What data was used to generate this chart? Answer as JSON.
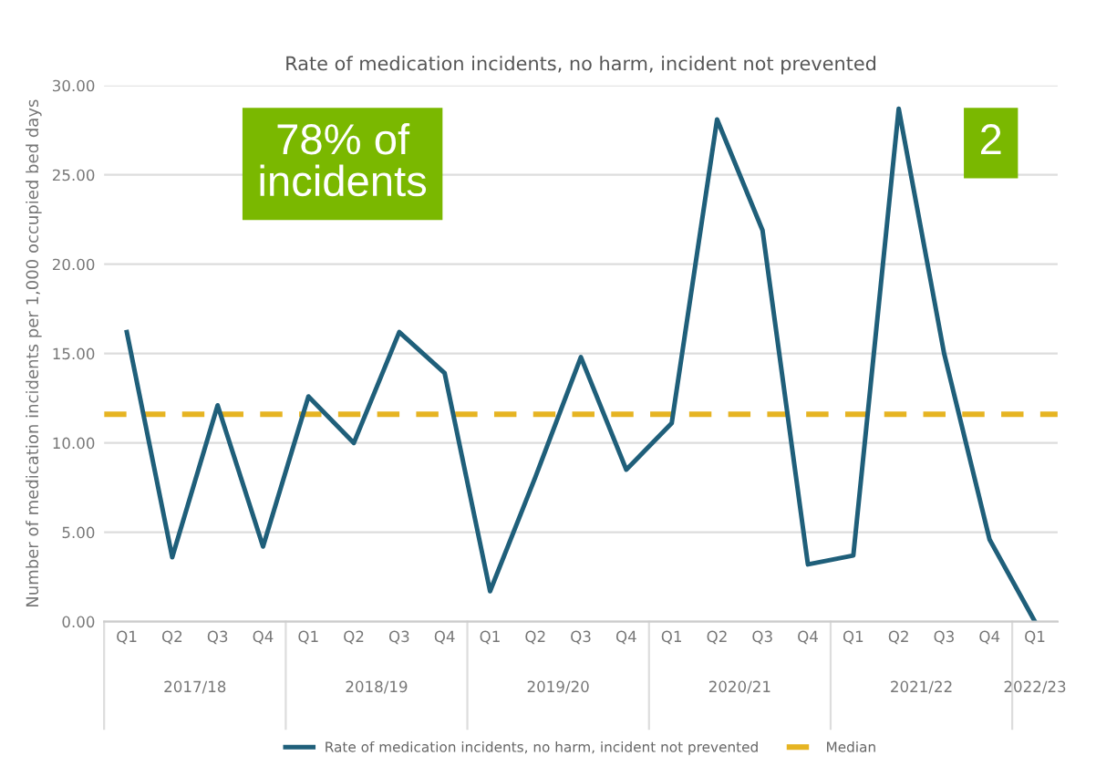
{
  "chart_data": {
    "type": "line",
    "title": "Rate of medication incidents, no harm, incident not prevented",
    "ylabel": "Number of medication incidents per 1,000 occupied bed days",
    "categories": [
      "Q1",
      "Q2",
      "Q3",
      "Q4",
      "Q1",
      "Q2",
      "Q3",
      "Q4",
      "Q1",
      "Q2",
      "Q3",
      "Q4",
      "Q1",
      "Q2",
      "Q3",
      "Q4",
      "Q1",
      "Q2",
      "Q3",
      "Q4",
      "Q1"
    ],
    "series": [
      {
        "name": "Rate of medication incidents, no harm, incident not prevented",
        "color": "#1f5f7a",
        "values": [
          16.2,
          3.6,
          12.1,
          4.2,
          12.6,
          10.0,
          16.2,
          13.9,
          1.7,
          8.1,
          14.8,
          8.5,
          11.1,
          28.1,
          21.9,
          3.2,
          3.7,
          28.7,
          15.0,
          4.6,
          0.0
        ]
      }
    ],
    "ref_lines": [
      {
        "axis": "y",
        "value": 11.6,
        "label": "Median",
        "color": "#e6b422",
        "line_style": "dashed"
      }
    ],
    "ylim": [
      0,
      30
    ],
    "yticks": [
      {
        "value": 0,
        "label": "0.00"
      },
      {
        "value": 5,
        "label": "5.00"
      },
      {
        "value": 10,
        "label": "10.00"
      },
      {
        "value": 15,
        "label": "15.00"
      },
      {
        "value": 20,
        "label": "20.00"
      },
      {
        "value": 25,
        "label": "25.00"
      },
      {
        "value": 30,
        "label": "30.00"
      }
    ],
    "grid": "y",
    "legend": "bottom",
    "line_style": "solid",
    "marker": "none",
    "annotations": [
      "78% of\nincidents",
      "2",
      "2017/18",
      "2018/19",
      "2019/20",
      "2020/21",
      "2021/22",
      "2022/23"
    ]
  }
}
